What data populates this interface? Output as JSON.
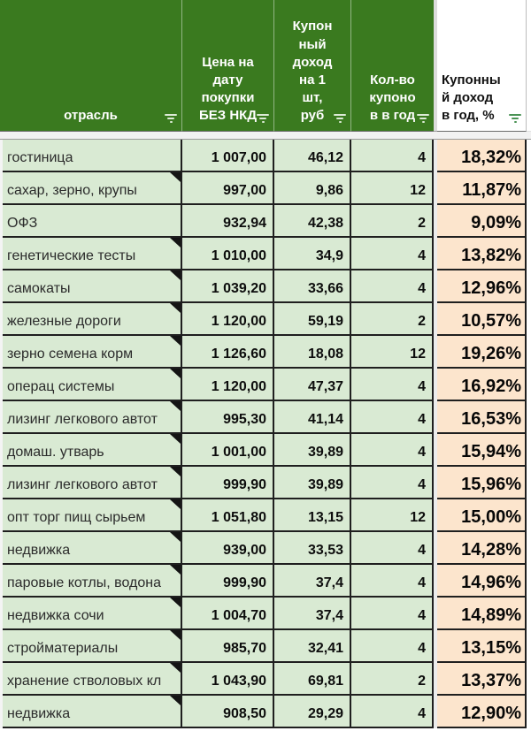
{
  "colors": {
    "header_bg": "#3a7a1f",
    "header_text": "#ffffff",
    "cell_bg": "#d9ead3",
    "yield_bg": "#fce5cd",
    "grid": "#1f1f1f",
    "filter_icon_on_green": "#dcead6",
    "filter_icon_on_white": "#4a9355"
  },
  "header": {
    "industry": "отрасль",
    "price": "Цена на\nдату\nпокупки\nБЕЗ НКД",
    "coupon": "Купон\nный\nдоход\nна 1\nшт,\nруб",
    "count": "Кол-во\nкупоно\nв в год",
    "yield": "Купонны\nй доход\nв год, %",
    "filter_icon": "filter-icon"
  },
  "rows": [
    {
      "industry": "гостиница",
      "price": "1 007,00",
      "coupon": "46,12",
      "count": "4",
      "yield": "18,32%",
      "note": false
    },
    {
      "industry": "сахар, зерно, крупы",
      "price": "997,00",
      "coupon": "9,86",
      "count": "12",
      "yield": "11,87%",
      "note": true
    },
    {
      "industry": "ОФЗ",
      "price": "932,94",
      "coupon": "42,38",
      "count": "2",
      "yield": "9,09%",
      "note": false
    },
    {
      "industry": "генетические тесты",
      "price": "1 010,00",
      "coupon": "34,9",
      "count": "4",
      "yield": "13,82%",
      "note": true
    },
    {
      "industry": "самокаты",
      "price": "1 039,20",
      "coupon": "33,66",
      "count": "4",
      "yield": "12,96%",
      "note": true
    },
    {
      "industry": "железные дороги",
      "price": "1 120,00",
      "coupon": "59,19",
      "count": "2",
      "yield": "10,57%",
      "note": true
    },
    {
      "industry": "зерно семена корм",
      "price": "1 126,60",
      "coupon": "18,08",
      "count": "12",
      "yield": "19,26%",
      "note": true
    },
    {
      "industry": "операц системы",
      "price": "1 120,00",
      "coupon": "47,37",
      "count": "4",
      "yield": "16,92%",
      "note": true
    },
    {
      "industry": "лизинг легкового автот",
      "price": "995,30",
      "coupon": "41,14",
      "count": "4",
      "yield": "16,53%",
      "note": true
    },
    {
      "industry": "домаш. утварь",
      "price": "1 001,00",
      "coupon": "39,89",
      "count": "4",
      "yield": "15,94%",
      "note": true
    },
    {
      "industry": "лизинг легкового автот",
      "price": "999,90",
      "coupon": "39,89",
      "count": "4",
      "yield": "15,96%",
      "note": true
    },
    {
      "industry": "опт торг пищ сырьем",
      "price": "1 051,80",
      "coupon": "13,15",
      "count": "12",
      "yield": "15,00%",
      "note": true
    },
    {
      "industry": "недвижка",
      "price": "939,00",
      "coupon": "33,53",
      "count": "4",
      "yield": "14,28%",
      "note": true
    },
    {
      "industry": "паровые котлы, водона",
      "price": "999,90",
      "coupon": "37,4",
      "count": "4",
      "yield": "14,96%",
      "note": true
    },
    {
      "industry": "недвижка сочи",
      "price": "1 004,70",
      "coupon": "37,4",
      "count": "4",
      "yield": "14,89%",
      "note": true
    },
    {
      "industry": "стройматериалы",
      "price": "985,70",
      "coupon": "32,41",
      "count": "4",
      "yield": "13,15%",
      "note": true
    },
    {
      "industry": "хранение стволовых кл",
      "price": "1 043,90",
      "coupon": "69,81",
      "count": "2",
      "yield": "13,37%",
      "note": true
    },
    {
      "industry": "недвижка",
      "price": "908,50",
      "coupon": "29,29",
      "count": "4",
      "yield": "12,90%",
      "note": true
    }
  ]
}
